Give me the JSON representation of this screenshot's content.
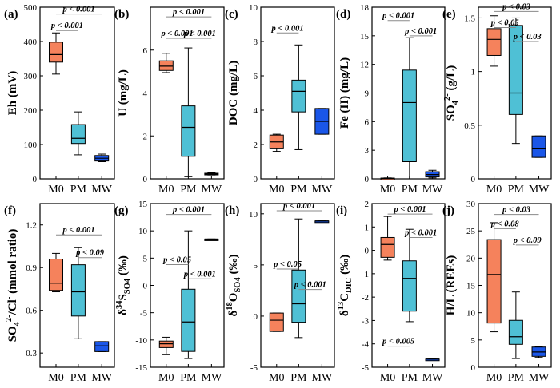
{
  "colors": {
    "M0": "#f5825c",
    "PM": "#4fc0d5",
    "MW": "#1a56e8"
  },
  "chart_data": [
    {
      "type": "box",
      "label": "(a)",
      "ylabel": "Eh (mV)",
      "ylim": [
        0,
        500
      ],
      "yticks": [
        "0",
        "100",
        "200",
        "300",
        "400",
        "500"
      ],
      "categories": [
        "M0",
        "PM",
        "MW"
      ],
      "boxes": [
        {
          "min": 305,
          "q1": 340,
          "median": 362,
          "q3": 398,
          "max": 425
        },
        {
          "min": 70,
          "q1": 103,
          "median": 118,
          "q3": 158,
          "max": 195
        },
        {
          "min": 50,
          "q1": 52,
          "median": 60,
          "q3": 68,
          "max": 72
        }
      ],
      "significance": [
        {
          "from": 0,
          "to": 2,
          "y": 480,
          "text": "p < 0.001"
        },
        {
          "from": 0,
          "to": 1,
          "y": 432,
          "text": "p < 0.001"
        }
      ]
    },
    {
      "type": "box",
      "label": "(b)",
      "ylabel": "U (mg/L)",
      "ylim": [
        0,
        8
      ],
      "yticks": [
        "0",
        "2",
        "4",
        "6"
      ],
      "categories": [
        "M0",
        "PM",
        "MW"
      ],
      "boxes": [
        {
          "min": 4.95,
          "q1": 5.05,
          "median": 5.25,
          "q3": 5.5,
          "max": 5.85
        },
        {
          "min": 0.1,
          "q1": 1.05,
          "median": 2.4,
          "q3": 3.4,
          "max": 6.1
        },
        {
          "min": 0.18,
          "q1": 0.2,
          "median": 0.22,
          "q3": 0.26,
          "max": 0.28
        }
      ],
      "significance": [
        {
          "from": 0,
          "to": 2,
          "y": 7.55,
          "text": "p < 0.001"
        },
        {
          "from": 0,
          "to": 1,
          "y": 6.55,
          "text": "p < 0.001"
        },
        {
          "from": 1,
          "to": 2,
          "y": 6.55,
          "text": "p < 0.001"
        }
      ]
    },
    {
      "type": "box",
      "label": "(c)",
      "ylabel": "DOC (mg/L)",
      "ylim": [
        0,
        10
      ],
      "yticks": [
        "0",
        "2",
        "4",
        "6",
        "8",
        "10"
      ],
      "categories": [
        "M0",
        "PM",
        "MW"
      ],
      "boxes": [
        {
          "min": 1.6,
          "q1": 1.75,
          "median": 2.15,
          "q3": 2.55,
          "max": 2.6
        },
        {
          "min": 1.7,
          "q1": 3.9,
          "median": 5.1,
          "q3": 5.75,
          "max": 7.8
        },
        {
          "min": 2.6,
          "q1": 2.6,
          "median": 3.35,
          "q3": 4.1,
          "max": 4.1
        }
      ],
      "significance": [
        {
          "from": 0,
          "to": 1,
          "y": 8.5,
          "text": "p < 0.001"
        }
      ]
    },
    {
      "type": "box",
      "label": "(d)",
      "ylabel": "Fe (II) (mg/L)",
      "ylim": [
        0,
        18
      ],
      "yticks": [
        "0",
        "3",
        "6",
        "9",
        "12",
        "15",
        "18"
      ],
      "categories": [
        "M0",
        "PM",
        "MW"
      ],
      "boxes": [
        {
          "min": 0.0,
          "q1": 0.02,
          "median": 0.05,
          "q3": 0.08,
          "max": 0.1
        },
        {
          "min": 0.0,
          "q1": 1.8,
          "median": 8.0,
          "q3": 11.4,
          "max": 14.8
        },
        {
          "min": 0.1,
          "q1": 0.2,
          "median": 0.45,
          "q3": 0.75,
          "max": 0.9
        }
      ],
      "significance": [
        {
          "from": 0,
          "to": 1,
          "y": 16.6,
          "text": "p < 0.001"
        },
        {
          "from": 1,
          "to": 2,
          "y": 15.0,
          "text": "p < 0.001"
        }
      ]
    },
    {
      "type": "box",
      "label": "(e)",
      "ylabel": "SO42- (g/L)",
      "ylim": [
        0,
        1.6
      ],
      "yticks": [
        "0",
        "0.5",
        "1",
        "1.5"
      ],
      "categories": [
        "M0",
        "PM",
        "MW"
      ],
      "boxes": [
        {
          "min": 1.05,
          "q1": 1.15,
          "median": 1.3,
          "q3": 1.4,
          "max": 1.52
        },
        {
          "min": 0.33,
          "q1": 0.6,
          "median": 0.8,
          "q3": 1.43,
          "max": 1.5
        },
        {
          "min": 0.2,
          "q1": 0.2,
          "median": 0.28,
          "q3": 0.4,
          "max": 0.4
        }
      ],
      "significance": [
        {
          "from": 0,
          "to": 2,
          "y": 1.56,
          "text": "p < 0.03"
        },
        {
          "from": 0,
          "to": 1,
          "y": 1.41,
          "text": "p < 0.05"
        },
        {
          "from": 1,
          "to": 2,
          "y": 1.28,
          "text": "p < 0.03"
        }
      ]
    },
    {
      "type": "box",
      "label": "(f)",
      "ylabel": "SO42-/Cl- (mmol ratio)",
      "ylim": [
        0.2,
        1.35
      ],
      "yticks": [
        "0.3",
        "0.6",
        "0.9",
        "1.2"
      ],
      "categories": [
        "M0",
        "PM",
        "MW"
      ],
      "boxes": [
        {
          "min": 0.73,
          "q1": 0.74,
          "median": 0.79,
          "q3": 0.96,
          "max": 1.0
        },
        {
          "min": 0.4,
          "q1": 0.56,
          "median": 0.73,
          "q3": 0.92,
          "max": 1.04
        },
        {
          "min": 0.31,
          "q1": 0.31,
          "median": 0.35,
          "q3": 0.38,
          "max": 0.38
        }
      ],
      "significance": [
        {
          "from": 0,
          "to": 2,
          "y": 1.13,
          "text": "p < 0.001"
        },
        {
          "from": 1,
          "to": 2,
          "y": 0.97,
          "text": "p < 0.09"
        }
      ]
    },
    {
      "type": "box",
      "label": "(g)",
      "ylabel": "δ34SSO4 (‰)",
      "ylim": [
        -15,
        15
      ],
      "yticks": [
        "-15",
        "-10",
        "-5",
        "0",
        "5",
        "10",
        "15"
      ],
      "categories": [
        "M0",
        "PM",
        "MW"
      ],
      "boxes": [
        {
          "min": -12.7,
          "q1": -11.4,
          "median": -10.7,
          "q3": -10.2,
          "max": -9.5
        },
        {
          "min": -13.4,
          "q1": -12.1,
          "median": -6.7,
          "q3": -0.7,
          "max": 10.0
        },
        {
          "min": 8.5,
          "q1": 8.5,
          "median": 8.5,
          "q3": 8.5,
          "max": 8.5
        }
      ],
      "significance": [
        {
          "from": 0,
          "to": 2,
          "y": 13.0,
          "text": "p < 0.001"
        },
        {
          "from": 0,
          "to": 1,
          "y": 3.8,
          "text": "p < 0.05"
        },
        {
          "from": 1,
          "to": 2,
          "y": 1.2,
          "text": "p < 0.001"
        }
      ]
    },
    {
      "type": "box",
      "label": "(h)",
      "ylabel": "δ18OSO4 (‰)",
      "ylim": [
        -5,
        11
      ],
      "yticks": [
        "-5",
        "0",
        "5",
        "10"
      ],
      "categories": [
        "M0",
        "PM",
        "MW"
      ],
      "boxes": [
        {
          "min": -1.5,
          "q1": -1.5,
          "median": -0.4,
          "q3": 0.3,
          "max": 0.3
        },
        {
          "min": -2.1,
          "q1": -0.6,
          "median": 1.2,
          "q3": 4.5,
          "max": 9.5
        },
        {
          "min": 9.3,
          "q1": 9.3,
          "median": 9.3,
          "q3": 9.3,
          "max": 9.3
        }
      ],
      "significance": [
        {
          "from": 0,
          "to": 2,
          "y": 10.3,
          "text": "p < 0.001"
        },
        {
          "from": 0,
          "to": 1,
          "y": 4.6,
          "text": "p < 0.05"
        },
        {
          "from": 1,
          "to": 2,
          "y": 2.6,
          "text": "p < 0.001"
        }
      ]
    },
    {
      "type": "box",
      "label": "(i)",
      "ylabel": "δ13CDIC (‰)",
      "ylim": [
        -5,
        2
      ],
      "yticks": [
        "-5",
        "-4",
        "-3",
        "-2",
        "-1",
        "0",
        "1",
        "2"
      ],
      "categories": [
        "M0",
        "PM",
        "MW"
      ],
      "boxes": [
        {
          "min": -0.42,
          "q1": -0.3,
          "median": 0.25,
          "q3": 0.55,
          "max": 1.45
        },
        {
          "min": -3.05,
          "q1": -2.6,
          "median": -1.2,
          "q3": -0.45,
          "max": 0.9
        },
        {
          "min": -4.65,
          "q1": -4.65,
          "median": -4.65,
          "q3": -4.65,
          "max": -4.65
        }
      ],
      "significance": [
        {
          "from": 0,
          "to": 2,
          "y": 1.55,
          "text": "p < 0.001"
        },
        {
          "from": 1,
          "to": 2,
          "y": 0.55,
          "text": "p < 0.001"
        },
        {
          "from": 0,
          "to": 1,
          "y": -4.1,
          "text": "p < 0.005"
        }
      ]
    },
    {
      "type": "box",
      "label": "(j)",
      "ylabel": "H/L (REEs)",
      "ylim": [
        0,
        30
      ],
      "yticks": [
        "0",
        "5",
        "10",
        "15",
        "20",
        "25",
        "30"
      ],
      "categories": [
        "M0",
        "PM",
        "MW"
      ],
      "boxes": [
        {
          "min": 6.5,
          "q1": 8.1,
          "median": 17.0,
          "q3": 23.4,
          "max": 26.5
        },
        {
          "min": 1.6,
          "q1": 4.2,
          "median": 5.6,
          "q3": 8.6,
          "max": 13.8
        },
        {
          "min": 1.8,
          "q1": 2.0,
          "median": 2.8,
          "q3": 3.7,
          "max": 3.8
        }
      ],
      "significance": [
        {
          "from": 0,
          "to": 2,
          "y": 28.0,
          "text": "p < 0.03"
        },
        {
          "from": 0,
          "to": 1,
          "y": 25.4,
          "text": "p < 0.08"
        },
        {
          "from": 1,
          "to": 2,
          "y": 22.4,
          "text": "p < 0.09"
        }
      ]
    }
  ]
}
